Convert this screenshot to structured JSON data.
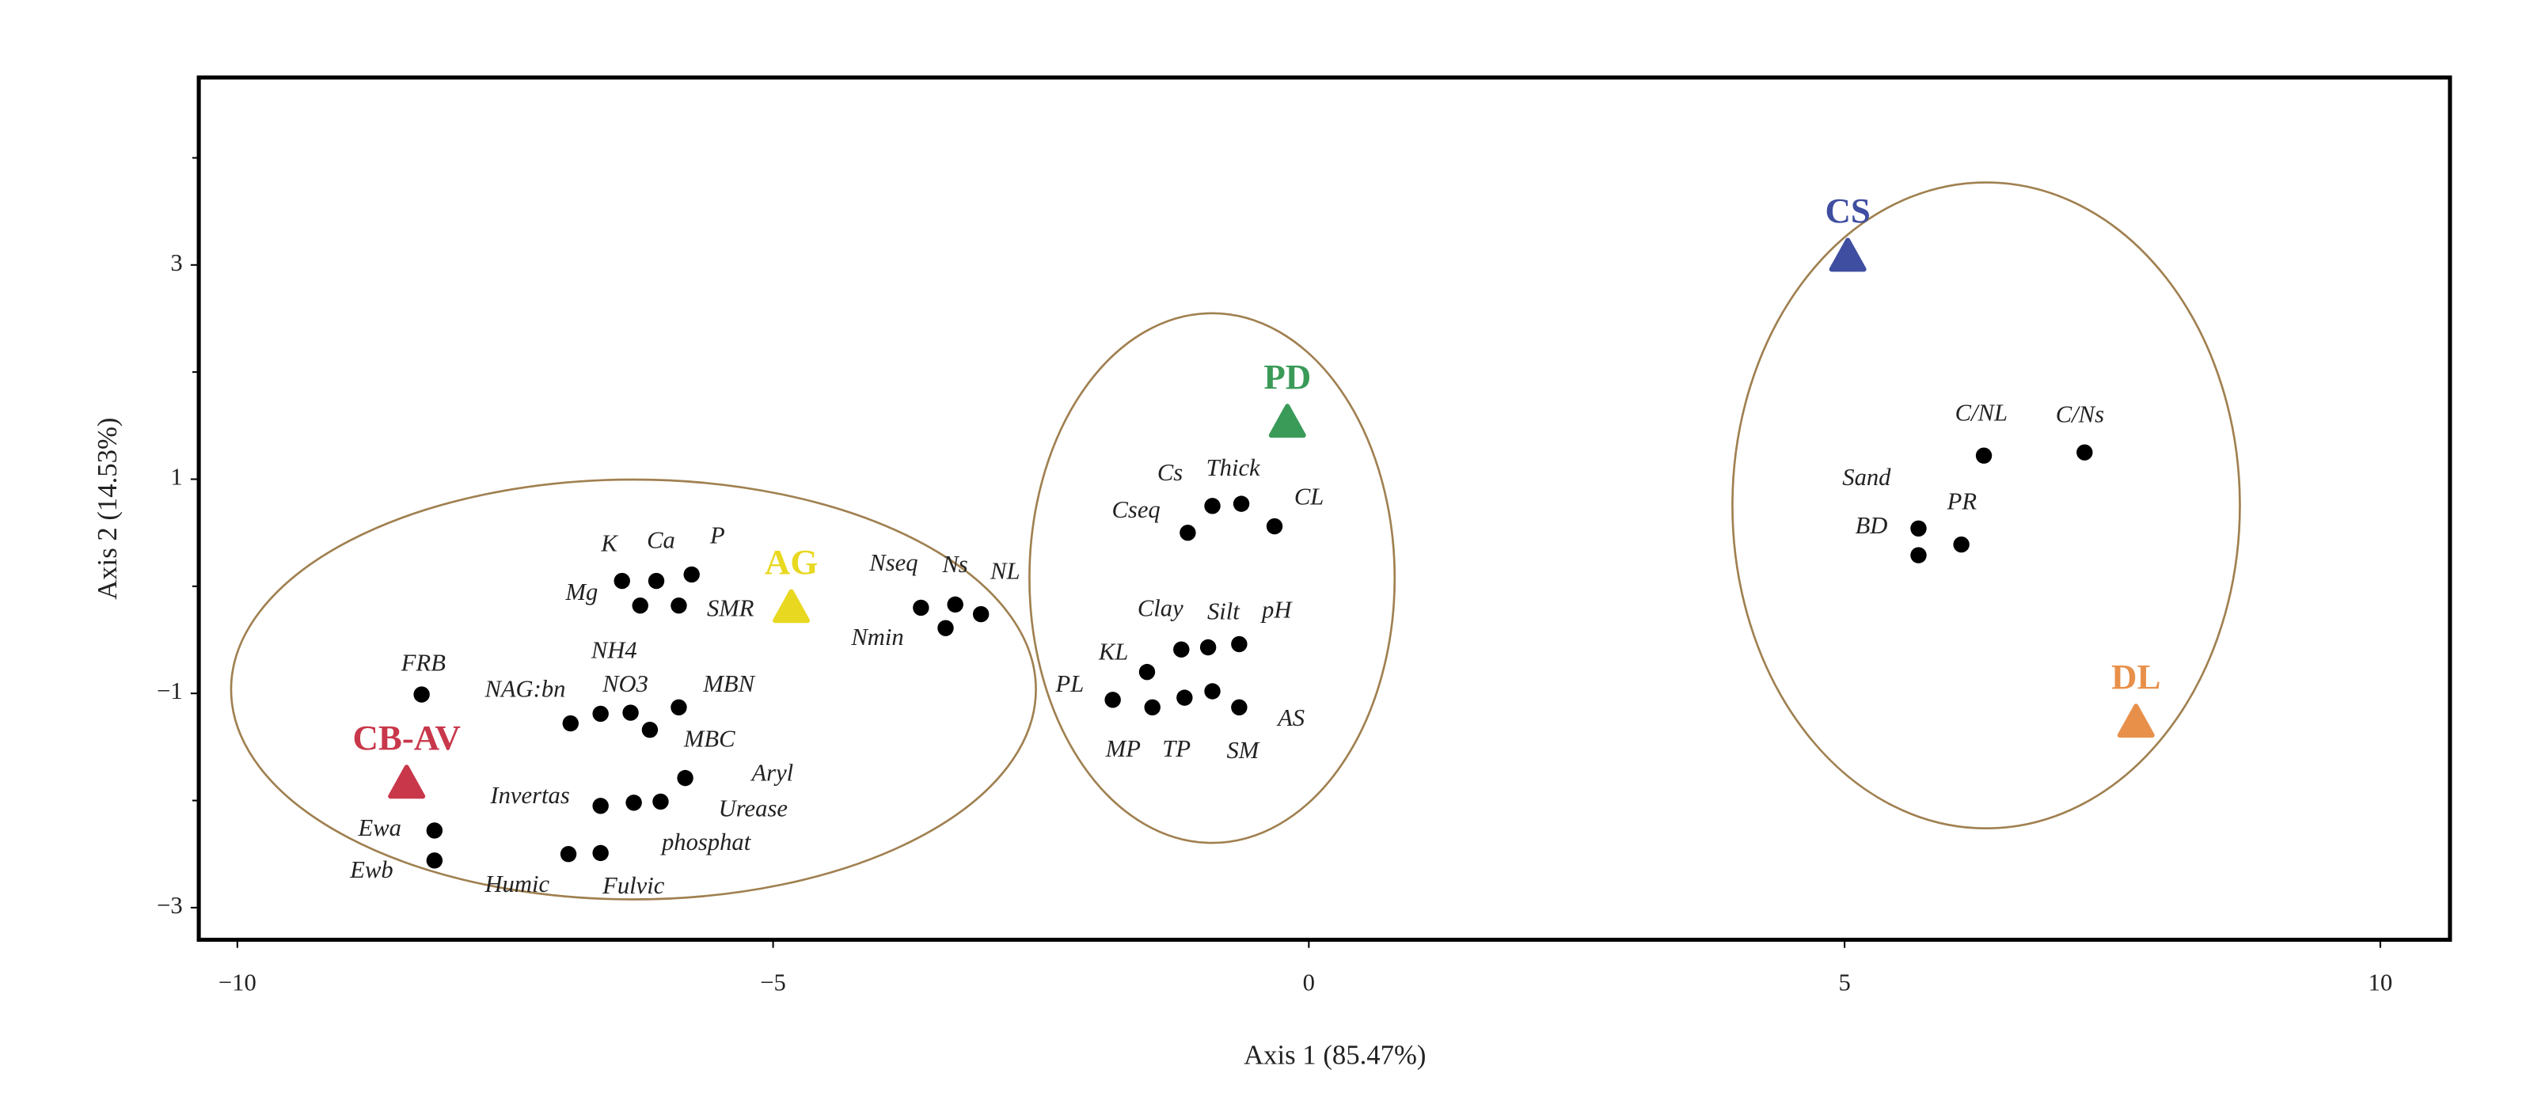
{
  "chart_data": {
    "type": "scatter",
    "xlabel": "Axis 1 (85.47%)",
    "ylabel": "Axis 2 (14.53%)",
    "xlim": [
      -10.36,
      10.65
    ],
    "ylim": [
      -3.3,
      4.75
    ],
    "xticks": [
      {
        "value": -10,
        "label": "−10"
      },
      {
        "value": -5,
        "label": "−5"
      },
      0,
      5,
      10
    ],
    "yticks": [
      {
        "value": -3,
        "label": "−3"
      },
      {
        "value": -1,
        "label": "−1"
      },
      1,
      3
    ],
    "yminor_ticks": [
      -2,
      0,
      2,
      4
    ],
    "points": {
      "color": "#000000",
      "x": [
        -8.28,
        -6.89,
        -6.61,
        -6.33,
        -5.88,
        -6.15,
        -6.41,
        -6.09,
        -5.76,
        -6.24,
        -5.88,
        -6.61,
        -6.3,
        -6.05,
        -5.82,
        -8.16,
        -8.16,
        -6.91,
        -6.61,
        -3.62,
        -3.3,
        -3.06,
        -3.39,
        -0.9,
        -0.63,
        -0.32,
        -1.13,
        -1.19,
        -0.94,
        -0.65,
        -1.51,
        -1.83,
        -1.46,
        -1.16,
        -0.9,
        -0.65,
        6.3,
        7.24,
        5.69,
        5.69,
        6.09
      ],
      "y": [
        -1.01,
        -1.28,
        -1.19,
        -1.18,
        -1.13,
        -1.34,
        0.05,
        0.05,
        0.11,
        -0.18,
        -0.18,
        -2.05,
        -2.02,
        -2.01,
        -1.79,
        -2.28,
        -2.56,
        -2.5,
        -2.49,
        -0.2,
        -0.17,
        -0.26,
        -0.39,
        0.75,
        0.77,
        0.56,
        0.5,
        -0.59,
        -0.57,
        -0.54,
        -0.8,
        -1.06,
        -1.13,
        -1.04,
        -0.98,
        -1.13,
        1.22,
        1.25,
        0.54,
        0.29,
        0.39
      ],
      "labels": [
        "FRB",
        "NAG:bn",
        "NO3",
        "NH4",
        "MBN",
        "MBC",
        "K",
        "Ca",
        "P",
        "Mg",
        "SMR",
        "Invertas",
        "Urease",
        "phosphat",
        "Aryl",
        "Ewa",
        "Ewb",
        "Humic",
        "Fulvic",
        "Nseq",
        "Ns",
        "NL",
        "Nmin",
        "Cs",
        "Thick",
        "CL",
        "Cseq",
        "Clay",
        "Silt",
        "pH",
        "KL",
        "PL",
        "MP",
        "TP",
        "SM",
        "AS",
        "C/NL",
        "C/Ns",
        "Sand",
        "BD",
        "PR"
      ]
    },
    "sites": {
      "x": [
        5.03,
        -0.2,
        -4.83,
        -8.42,
        7.72
      ],
      "y": [
        3.08,
        1.53,
        -0.2,
        -1.84,
        -1.27
      ],
      "labels": [
        "CS",
        "PD",
        "AG",
        "CB-AV",
        "DL"
      ],
      "colors": [
        "#3f4ea0",
        "#3a9a58",
        "#e8d820",
        "#c8374a",
        "#e8904a"
      ]
    }
  }
}
